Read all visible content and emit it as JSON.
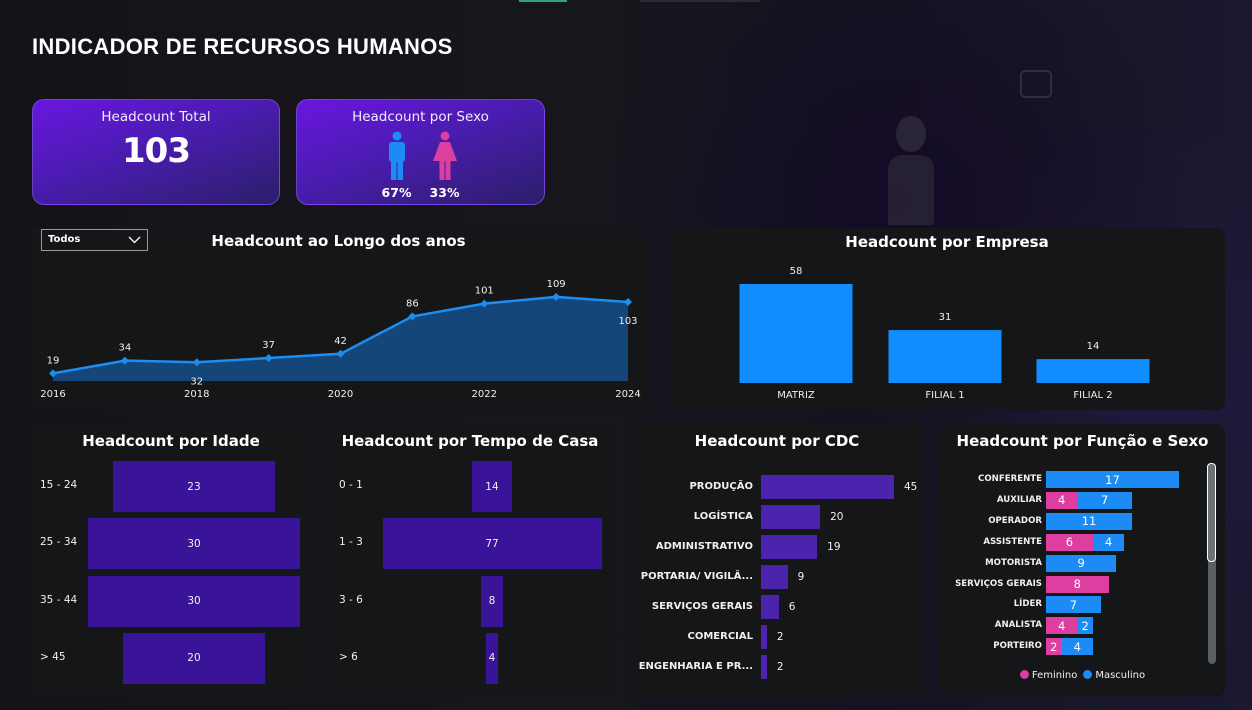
{
  "header": {
    "title": "INDICADOR DE RECURSOS HUMANOS"
  },
  "kpis": {
    "total": {
      "label": "Headcount Total",
      "value": "103"
    },
    "by_sex": {
      "label": "Headcount por Sexo",
      "male": {
        "icon": "male-icon",
        "pct": "67%",
        "color": "#1d8bf5"
      },
      "female": {
        "icon": "female-icon",
        "pct": "33%",
        "color": "#dd3fa0"
      }
    }
  },
  "filter": {
    "selected": "Todos",
    "icon": "chevron-down-icon"
  },
  "colors": {
    "line": "#1e8df0",
    "area": "#14467a",
    "empresa_bar": "#118dff",
    "purple_bar": "#3a1498",
    "cdc_bar": "#4c23ad",
    "feminino": "#dd3fa0",
    "masculino": "#1d8bf5"
  },
  "chart_data": [
    {
      "type": "area",
      "title": "Headcount ao Longo dos anos",
      "x": [
        2016,
        2017,
        2018,
        2019,
        2020,
        2021,
        2022,
        2023,
        2024
      ],
      "values": [
        19,
        34,
        32,
        37,
        42,
        86,
        101,
        109,
        103
      ],
      "xtick_labels": [
        "2016",
        "2018",
        "2020",
        "2022",
        "2024"
      ],
      "xlabel": "",
      "ylabel": "",
      "grid": false
    },
    {
      "type": "bar",
      "title": "Headcount por Empresa",
      "categories": [
        "MATRIZ",
        "FILIAL 1",
        "FILIAL 2"
      ],
      "values": [
        58,
        31,
        14
      ]
    },
    {
      "type": "bar",
      "orientation": "funnel",
      "title": "Headcount por Idade",
      "categories": [
        "15 - 24",
        "25 - 34",
        "35 - 44",
        "> 45"
      ],
      "values": [
        23,
        30,
        30,
        20
      ]
    },
    {
      "type": "bar",
      "orientation": "funnel",
      "title": "Headcount por Tempo de Casa",
      "categories": [
        "0 - 1",
        "1 - 3",
        "3 - 6",
        "> 6"
      ],
      "values": [
        14,
        77,
        8,
        4
      ]
    },
    {
      "type": "bar",
      "orientation": "horizontal",
      "title": "Headcount por CDC",
      "categories": [
        "PRODUÇÃO",
        "LOGÍSTICA",
        "ADMINISTRATIVO",
        "PORTARIA/ VIGILÂ...",
        "SERVIÇOS GERAIS",
        "COMERCIAL",
        "ENGENHARIA E PR..."
      ],
      "values": [
        45,
        20,
        19,
        9,
        6,
        2,
        2
      ]
    },
    {
      "type": "bar",
      "orientation": "horizontal-stacked",
      "title": "Headcount por Função e Sexo",
      "categories": [
        "CONFERENTE",
        "AUXILIAR",
        "OPERADOR",
        "ASSISTENTE",
        "MOTORISTA",
        "SERVIÇOS GERAIS",
        "LÍDER",
        "ANALISTA",
        "PORTEIRO"
      ],
      "series": [
        {
          "name": "Feminino",
          "values": [
            0,
            4,
            0,
            6,
            0,
            8,
            0,
            4,
            2
          ]
        },
        {
          "name": "Masculino",
          "values": [
            17,
            7,
            11,
            4,
            9,
            0,
            7,
            2,
            4
          ]
        }
      ],
      "legend": [
        "Feminino",
        "Masculino"
      ],
      "legend_position": "bottom"
    }
  ]
}
